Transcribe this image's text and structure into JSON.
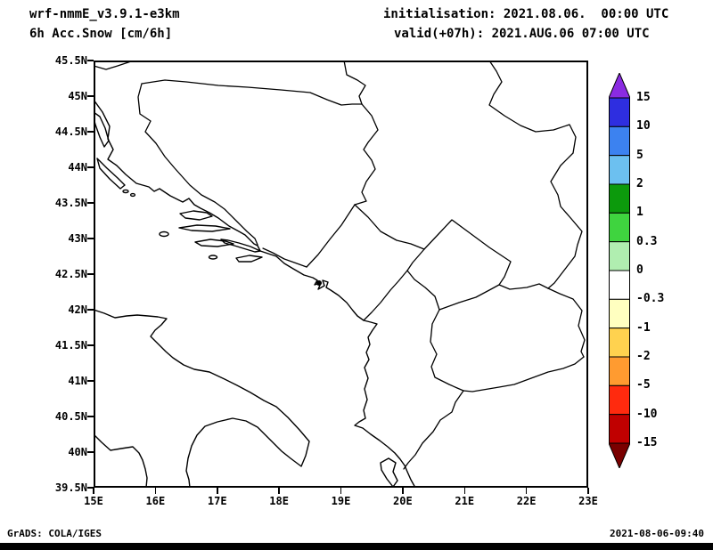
{
  "header": {
    "model": "wrf-nmmE_v3.9.1-e3km",
    "variable": "6h Acc.Snow [cm/6h]",
    "init": "initialisation: 2021.08.06.  00:00 UTC",
    "valid": "valid(+07h): 2021.AUG.06 07:00 UTC"
  },
  "footer": {
    "credit": "GrADS: COLA/IGES",
    "timestamp": "2021-08-06-09:40"
  },
  "chart_data": {
    "type": "map",
    "title": "6h Acc.Snow [cm/6h]",
    "subtitle": "wrf-nmmE_v3.9.1-e3km, init 2021.08.06 00:00 UTC, valid(+07h) 2021.AUG.06 07:00 UTC",
    "x_axis": {
      "label": "longitude",
      "range_deg_east": [
        15,
        23
      ],
      "tick_labels": [
        "15E",
        "16E",
        "17E",
        "18E",
        "19E",
        "20E",
        "21E",
        "22E",
        "23E"
      ]
    },
    "y_axis": {
      "label": "latitude",
      "range_deg_north": [
        39.5,
        45.5
      ],
      "tick_labels": [
        "45.5N",
        "45N",
        "44.5N",
        "44N",
        "43.5N",
        "43N",
        "42.5N",
        "42N",
        "41.5N",
        "41N",
        "40.5N",
        "40N",
        "39.5N"
      ]
    },
    "colorbar": {
      "units": "cm/6h",
      "levels": [
        "15",
        "10",
        "5",
        "2",
        "1",
        "0.3",
        "0",
        "-0.3",
        "-1",
        "-2",
        "-5",
        "-10",
        "-15"
      ],
      "colors": [
        "#2e2ee0",
        "#3c82f0",
        "#6cc0f0",
        "#0c9a0c",
        "#3fd43f",
        "#b0eeb0",
        "#ffffff",
        "#ffffc0",
        "#ffd24f",
        "#ff9b30",
        "#ff2a0e",
        "#c00000"
      ],
      "arrow_top_color": "#8a2be2",
      "arrow_bottom_color": "#7a0000",
      "position": "right"
    },
    "field_note": "No shaded snow accumulation values appear in the domain; only coastlines and country borders are drawn.",
    "grid": "off",
    "map_extent": {
      "lon": [
        15,
        23
      ],
      "lat": [
        39.5,
        45.5
      ]
    }
  }
}
